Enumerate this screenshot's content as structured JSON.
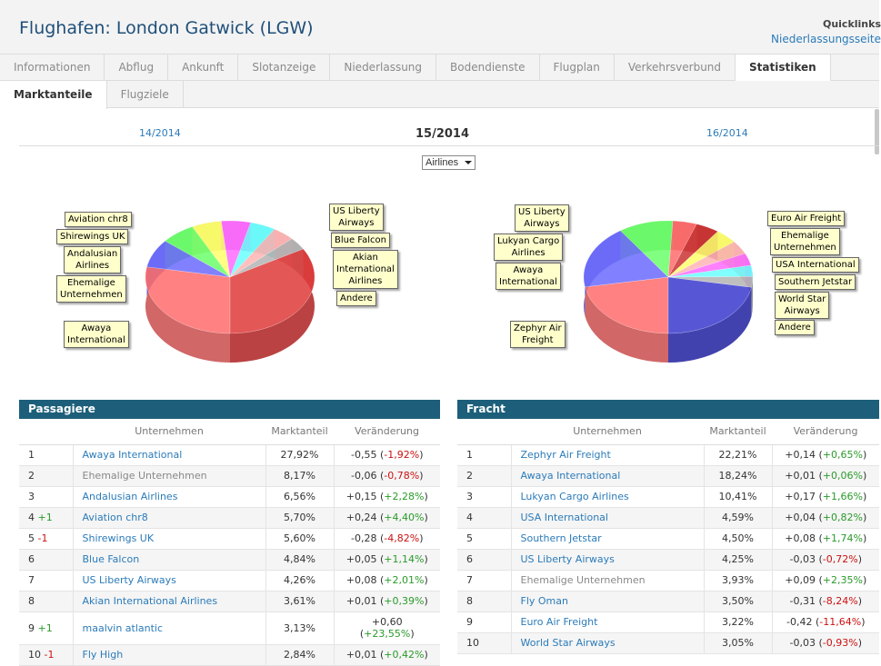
{
  "header": {
    "title": "Flughafen: London Gatwick (LGW)",
    "quicklinks_label": "Quicklinks",
    "quicklinks_link": "Niederlassungsseite"
  },
  "tabs": [
    "Informationen",
    "Abflug",
    "Ankunft",
    "Slotanzeige",
    "Niederlassung",
    "Bodendienste",
    "Flugplan",
    "Verkehrsverbund",
    "Statistiken"
  ],
  "subtabs": [
    "Marktanteile",
    "Flugziele"
  ],
  "week": {
    "prev": "14/2014",
    "current": "15/2014",
    "next": "16/2014"
  },
  "select": {
    "value": "Airlines"
  },
  "chart_data": [
    {
      "type": "pie",
      "series": [
        {
          "label": "Awaya International",
          "value": 27.92,
          "color": "#ff6c6c"
        },
        {
          "label": "Ehemalige Unternehmen",
          "value": 8.17,
          "color": "#6c6cff"
        },
        {
          "label": "Andalusian Airlines",
          "value": 6.56,
          "color": "#6cff6c"
        },
        {
          "label": "Aviation chr8",
          "value": 5.7,
          "color": "#ffff6c"
        },
        {
          "label": "Shirewings UK",
          "value": 5.6,
          "color": "#ff6cff"
        },
        {
          "label": "Blue Falcon",
          "value": 4.84,
          "color": "#6cffff"
        },
        {
          "label": "US Liberty Airways",
          "value": 4.26,
          "color": "#ffb4b4"
        },
        {
          "label": "Akian International Airlines",
          "value": 3.61,
          "color": "#b4b4b4"
        },
        {
          "label": "Andere",
          "value": 33.34,
          "color": "#e03a3a"
        }
      ]
    },
    {
      "type": "pie",
      "series": [
        {
          "label": "Zephyr Air Freight",
          "value": 22.21,
          "color": "#ff6c6c"
        },
        {
          "label": "Awaya International",
          "value": 18.24,
          "color": "#6c6cff"
        },
        {
          "label": "Lukyan Cargo Airlines",
          "value": 10.41,
          "color": "#6cff6c"
        },
        {
          "label": "USA International",
          "value": 4.59,
          "color": "#ff6c6c"
        },
        {
          "label": "Southern Jetstar",
          "value": 4.5,
          "color": "#cc3333"
        },
        {
          "label": "US Liberty Airways",
          "value": 4.25,
          "color": "#ffff6c"
        },
        {
          "label": "Ehemalige Unternehmen",
          "value": 3.93,
          "color": "#ffb4b4"
        },
        {
          "label": "Fly Oman",
          "value": 3.5,
          "color": "#ff6cff"
        },
        {
          "label": "Euro Air Freight",
          "value": 3.22,
          "color": "#6cffff"
        },
        {
          "label": "World Star Airways",
          "value": 3.05,
          "color": "#b4b4b4"
        },
        {
          "label": "Andere",
          "value": 22.1,
          "color": "#3a3ad0"
        }
      ]
    }
  ],
  "callouts_left": [
    "Aviation chr8",
    "Shirewings UK",
    "Andalusian|Airlines",
    "Ehemalige|Unternehmen",
    "Awaya|International",
    "US Liberty|Airways",
    "Blue Falcon",
    "Akian|International|Airlines",
    "Andere"
  ],
  "callouts_right": [
    "US Liberty|Airways",
    "Lukyan Cargo|Airlines",
    "Awaya|International",
    "Zephyr Air|Freight",
    "Euro Air Freight",
    "Ehemalige|Unternehmen",
    "USA International",
    "Southern Jetstar",
    "World Star|Airways",
    "Andere"
  ],
  "passagiere": {
    "title": "Passagiere",
    "headers": [
      "",
      "Unternehmen",
      "Marktanteil",
      "Veränderung"
    ],
    "rows": [
      {
        "rank": "1",
        "move": "",
        "company": "Awaya International",
        "grey": false,
        "share": "27,92%",
        "abs": "-0,55",
        "rel": "-1,92%",
        "sign": "neg"
      },
      {
        "rank": "2",
        "move": "",
        "company": "Ehemalige Unternehmen",
        "grey": true,
        "share": "8,17%",
        "abs": "-0,06",
        "rel": "-0,78%",
        "sign": "neg"
      },
      {
        "rank": "3",
        "move": "",
        "company": "Andalusian Airlines",
        "grey": false,
        "share": "6,56%",
        "abs": "+0,15",
        "rel": "+2,28%",
        "sign": "pos"
      },
      {
        "rank": "4",
        "move": "+1",
        "company": "Aviation chr8",
        "grey": false,
        "share": "5,70%",
        "abs": "+0,24",
        "rel": "+4,40%",
        "sign": "pos"
      },
      {
        "rank": "5",
        "move": "-1",
        "company": "Shirewings UK",
        "grey": false,
        "share": "5,60%",
        "abs": "-0,28",
        "rel": "-4,82%",
        "sign": "neg"
      },
      {
        "rank": "6",
        "move": "",
        "company": "Blue Falcon",
        "grey": false,
        "share": "4,84%",
        "abs": "+0,05",
        "rel": "+1,14%",
        "sign": "pos"
      },
      {
        "rank": "7",
        "move": "",
        "company": "US Liberty Airways",
        "grey": false,
        "share": "4,26%",
        "abs": "+0,08",
        "rel": "+2,01%",
        "sign": "pos"
      },
      {
        "rank": "8",
        "move": "",
        "company": "Akian International Airlines",
        "grey": false,
        "share": "3,61%",
        "abs": "+0,01",
        "rel": "+0,39%",
        "sign": "pos"
      },
      {
        "rank": "9",
        "move": "+1",
        "company": "maalvin atlantic",
        "grey": false,
        "share": "3,13%",
        "abs": "+0,60",
        "rel": "+23,55%",
        "sign": "pos",
        "wrap": true
      },
      {
        "rank": "10",
        "move": "-1",
        "company": "Fly High",
        "grey": false,
        "share": "2,84%",
        "abs": "+0,01",
        "rel": "+0,42%",
        "sign": "pos"
      }
    ]
  },
  "fracht": {
    "title": "Fracht",
    "headers": [
      "",
      "Unternehmen",
      "Marktanteil",
      "Veränderung"
    ],
    "rows": [
      {
        "rank": "1",
        "move": "",
        "company": "Zephyr Air Freight",
        "grey": false,
        "share": "22,21%",
        "abs": "+0,14",
        "rel": "+0,65%",
        "sign": "pos"
      },
      {
        "rank": "2",
        "move": "",
        "company": "Awaya International",
        "grey": false,
        "share": "18,24%",
        "abs": "+0,01",
        "rel": "+0,06%",
        "sign": "pos"
      },
      {
        "rank": "3",
        "move": "",
        "company": "Lukyan Cargo Airlines",
        "grey": false,
        "share": "10,41%",
        "abs": "+0,17",
        "rel": "+1,66%",
        "sign": "pos"
      },
      {
        "rank": "4",
        "move": "",
        "company": "USA International",
        "grey": false,
        "share": "4,59%",
        "abs": "+0,04",
        "rel": "+0,82%",
        "sign": "pos"
      },
      {
        "rank": "5",
        "move": "",
        "company": "Southern Jetstar",
        "grey": false,
        "share": "4,50%",
        "abs": "+0,08",
        "rel": "+1,74%",
        "sign": "pos"
      },
      {
        "rank": "6",
        "move": "",
        "company": "US Liberty Airways",
        "grey": false,
        "share": "4,25%",
        "abs": "-0,03",
        "rel": "-0,72%",
        "sign": "neg"
      },
      {
        "rank": "7",
        "move": "",
        "company": "Ehemalige Unternehmen",
        "grey": true,
        "share": "3,93%",
        "abs": "+0,09",
        "rel": "+2,35%",
        "sign": "pos"
      },
      {
        "rank": "8",
        "move": "",
        "company": "Fly Oman",
        "grey": false,
        "share": "3,50%",
        "abs": "-0,31",
        "rel": "-8,24%",
        "sign": "neg"
      },
      {
        "rank": "9",
        "move": "",
        "company": "Euro Air Freight",
        "grey": false,
        "share": "3,22%",
        "abs": "-0,42",
        "rel": "-11,64%",
        "sign": "neg"
      },
      {
        "rank": "10",
        "move": "",
        "company": "World Star Airways",
        "grey": false,
        "share": "3,05%",
        "abs": "-0,03",
        "rel": "-0,93%",
        "sign": "neg"
      }
    ]
  }
}
